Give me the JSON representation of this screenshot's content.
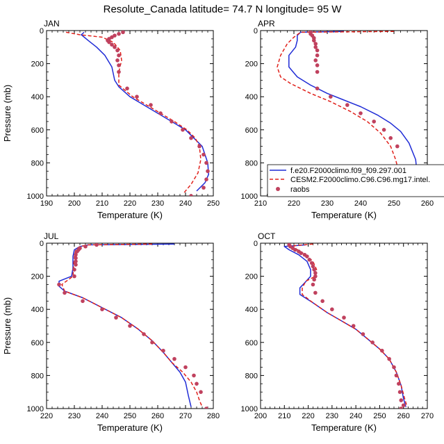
{
  "figure_title": "Resolute_Canada  latitude= 74.7 N longitude= 95 W",
  "colors": {
    "model1": "#1f2bd6",
    "model2": "#e0201a",
    "obs": "#c0415e"
  },
  "chart_data": [
    {
      "type": "line",
      "month": "JAN",
      "xlim": [
        190,
        250
      ],
      "xticks": [
        190,
        200,
        210,
        220,
        230,
        240,
        250
      ],
      "ylim": [
        0,
        1000
      ],
      "yticks": [
        0,
        200,
        400,
        600,
        800,
        1000
      ],
      "y_inverted": true,
      "xlabel": "Temperature (K)",
      "ylabel": "Pressure (mb)",
      "series": [
        {
          "name": "f.e20.F2000climo.f09_f09.297.001",
          "style": "solid",
          "x": [
            203.5,
            202.5,
            205,
            208,
            211,
            213.5,
            214.5,
            216,
            220,
            225,
            230,
            235,
            240,
            243,
            246,
            248,
            248.3,
            247,
            244
          ],
          "y": [
            10,
            25,
            60,
            100,
            150,
            220,
            300,
            340,
            400,
            450,
            500,
            550,
            600,
            650,
            700,
            800,
            870,
            920,
            970
          ]
        },
        {
          "name": "CESM2.F2000climo.C96.C96.mg17.intel",
          "style": "dashed",
          "x": [
            197,
            202,
            210,
            214,
            216.5,
            217,
            216,
            216,
            221,
            226,
            231,
            236,
            240.5,
            243.5,
            245,
            245.5,
            244.5,
            242,
            239.5
          ],
          "y": [
            10,
            25,
            40,
            70,
            120,
            180,
            250,
            330,
            400,
            450,
            500,
            550,
            600,
            650,
            700,
            780,
            860,
            930,
            980
          ]
        },
        {
          "name": "raobs",
          "style": "markers",
          "x": [
            217.5,
            216,
            214.5,
            213.5,
            212.5,
            212,
            212.5,
            213.5,
            214.5,
            215.5,
            216,
            215.5,
            216,
            216,
            219,
            222.5,
            227.5,
            231,
            235,
            239,
            242,
            245,
            246.5,
            247.5,
            248,
            247.5,
            246.5,
            242
          ],
          "y": [
            10,
            20,
            30,
            40,
            50,
            60,
            70,
            85,
            100,
            120,
            150,
            180,
            210,
            250,
            350,
            400,
            450,
            500,
            550,
            600,
            650,
            700,
            750,
            800,
            850,
            900,
            950,
            1000
          ]
        }
      ]
    },
    {
      "type": "line",
      "month": "APR",
      "xlim": [
        210,
        260
      ],
      "xticks": [
        210,
        220,
        230,
        240,
        250,
        260
      ],
      "ylim": [
        0,
        1000
      ],
      "yticks": [
        0,
        200,
        400,
        600,
        800,
        1000
      ],
      "y_inverted": true,
      "xlabel": "Temperature (K)",
      "ylabel": "",
      "series": [
        {
          "name": "f.e20.F2000climo.f09_f09.297.001",
          "style": "solid",
          "x": [
            235,
            222,
            221,
            221,
            220.5,
            218.5,
            218.5,
            221,
            225,
            230,
            235,
            240,
            245,
            249,
            252,
            254.5,
            256.5,
            257,
            256,
            254.5
          ],
          "y": [
            5,
            10,
            30,
            60,
            100,
            150,
            220,
            280,
            330,
            380,
            420,
            460,
            510,
            560,
            610,
            680,
            780,
            880,
            940,
            990
          ]
        },
        {
          "name": "CESM2.F2000climo.C96.C96.mg17.intel",
          "style": "dashed",
          "x": [
            250,
            222,
            220,
            218,
            216,
            215,
            216,
            219,
            225,
            231,
            237,
            242,
            246,
            249,
            250.5,
            251.5,
            252,
            253
          ],
          "y": [
            5,
            10,
            40,
            80,
            150,
            220,
            280,
            320,
            380,
            430,
            490,
            550,
            620,
            700,
            780,
            860,
            930,
            990
          ]
        },
        {
          "name": "raobs",
          "style": "markers",
          "x": [
            225,
            225,
            225.5,
            226,
            226,
            226.5,
            226.5,
            227,
            227,
            226.5,
            227,
            227,
            227,
            231,
            236,
            240,
            244,
            247,
            249,
            251,
            251
          ],
          "y": [
            10,
            20,
            30,
            45,
            60,
            80,
            100,
            120,
            150,
            180,
            210,
            250,
            350,
            400,
            450,
            500,
            550,
            600,
            650,
            700,
            1000
          ]
        }
      ]
    },
    {
      "type": "line",
      "month": "JUL",
      "xlim": [
        220,
        280
      ],
      "xticks": [
        220,
        230,
        240,
        250,
        260,
        270,
        280
      ],
      "ylim": [
        0,
        1000
      ],
      "yticks": [
        0,
        200,
        400,
        600,
        800,
        1000
      ],
      "y_inverted": true,
      "xlabel": "Temperature (K)",
      "ylabel": "Pressure (mb)",
      "series": [
        {
          "name": "f.e20.F2000climo.f09_f09.297.001",
          "style": "solid",
          "x": [
            266,
            235,
            232,
            230,
            229.5,
            229.5,
            229,
            224.5,
            224.5,
            226.5,
            233,
            240,
            247,
            253,
            258,
            262,
            265,
            268,
            270,
            271,
            272
          ],
          "y": [
            5,
            10,
            20,
            40,
            80,
            150,
            200,
            230,
            260,
            290,
            330,
            390,
            450,
            520,
            590,
            660,
            720,
            780,
            840,
            920,
            990
          ]
        },
        {
          "name": "CESM2.F2000climo.C96.C96.mg17.intel",
          "style": "dashed",
          "x": [
            258,
            235,
            232,
            230.5,
            230,
            229.5,
            225.5,
            226.5,
            233,
            240,
            247,
            253,
            258,
            262,
            265,
            269,
            272,
            274,
            275,
            276
          ],
          "y": [
            5,
            10,
            20,
            40,
            80,
            200,
            250,
            290,
            330,
            390,
            450,
            520,
            590,
            660,
            720,
            780,
            840,
            900,
            950,
            990
          ]
        },
        {
          "name": "raobs",
          "style": "markers",
          "x": [
            238,
            234,
            232,
            231.5,
            231,
            230.5,
            230.5,
            230.5,
            230.5,
            230,
            230,
            224.5,
            226.5,
            233,
            240,
            245,
            250,
            255,
            258,
            262,
            266,
            270,
            273,
            274,
            275.5,
            277.5
          ],
          "y": [
            10,
            20,
            30,
            40,
            50,
            70,
            90,
            110,
            130,
            160,
            200,
            250,
            300,
            350,
            400,
            450,
            500,
            550,
            600,
            650,
            700,
            750,
            800,
            850,
            900,
            1000
          ]
        }
      ]
    },
    {
      "type": "line",
      "month": "OCT",
      "xlim": [
        200,
        270
      ],
      "xticks": [
        200,
        210,
        220,
        230,
        240,
        250,
        260,
        270
      ],
      "ylim": [
        0,
        1000
      ],
      "yticks": [
        0,
        200,
        400,
        600,
        800,
        1000
      ],
      "y_inverted": true,
      "xlabel": "Temperature (K)",
      "ylabel": "",
      "series": [
        {
          "name": "f.e20.F2000climo.f09_f09.297.001",
          "style": "solid",
          "x": [
            219,
            210,
            212,
            216,
            219.5,
            221,
            221,
            218.5,
            216.5,
            216.5,
            222,
            228,
            234,
            240,
            245,
            250,
            254,
            257,
            259,
            260,
            261
          ],
          "y": [
            10,
            20,
            40,
            70,
            110,
            160,
            200,
            240,
            270,
            310,
            360,
            420,
            470,
            520,
            580,
            640,
            700,
            780,
            860,
            940,
            990
          ]
        },
        {
          "name": "CESM2.F2000climo.C96.C96.mg17.intel",
          "style": "dashed",
          "x": [
            222,
            214,
            215,
            219,
            222,
            223.5,
            223,
            219,
            217.5,
            217.5,
            222,
            228,
            234,
            240,
            245,
            250,
            254,
            257,
            259,
            260.5,
            261.5
          ],
          "y": [
            5,
            15,
            35,
            70,
            110,
            160,
            200,
            230,
            270,
            310,
            360,
            420,
            470,
            520,
            580,
            640,
            700,
            780,
            860,
            940,
            990
          ]
        },
        {
          "name": "raobs",
          "style": "markers",
          "x": [
            212,
            212.5,
            213.5,
            214.5,
            216,
            217,
            218.5,
            219.5,
            220.5,
            221.5,
            222,
            222.5,
            223,
            223,
            222.5,
            222,
            223,
            226,
            230,
            235,
            239,
            243,
            247,
            251,
            254,
            256,
            257,
            258,
            258.5,
            259,
            260,
            259
          ],
          "y": [
            10,
            20,
            30,
            40,
            50,
            60,
            70,
            80,
            100,
            120,
            140,
            160,
            180,
            200,
            220,
            250,
            300,
            350,
            400,
            450,
            500,
            550,
            600,
            650,
            700,
            750,
            800,
            850,
            900,
            950,
            980,
            1000
          ]
        }
      ]
    }
  ],
  "legend": {
    "entries": [
      {
        "label": "f.e20.F2000climo.f09_f09.297.001",
        "style": "solid"
      },
      {
        "label": "CESM2.F2000climo.C96.C96.mg17.intel.",
        "style": "dashed"
      },
      {
        "label": "raobs",
        "style": "markers"
      }
    ]
  }
}
